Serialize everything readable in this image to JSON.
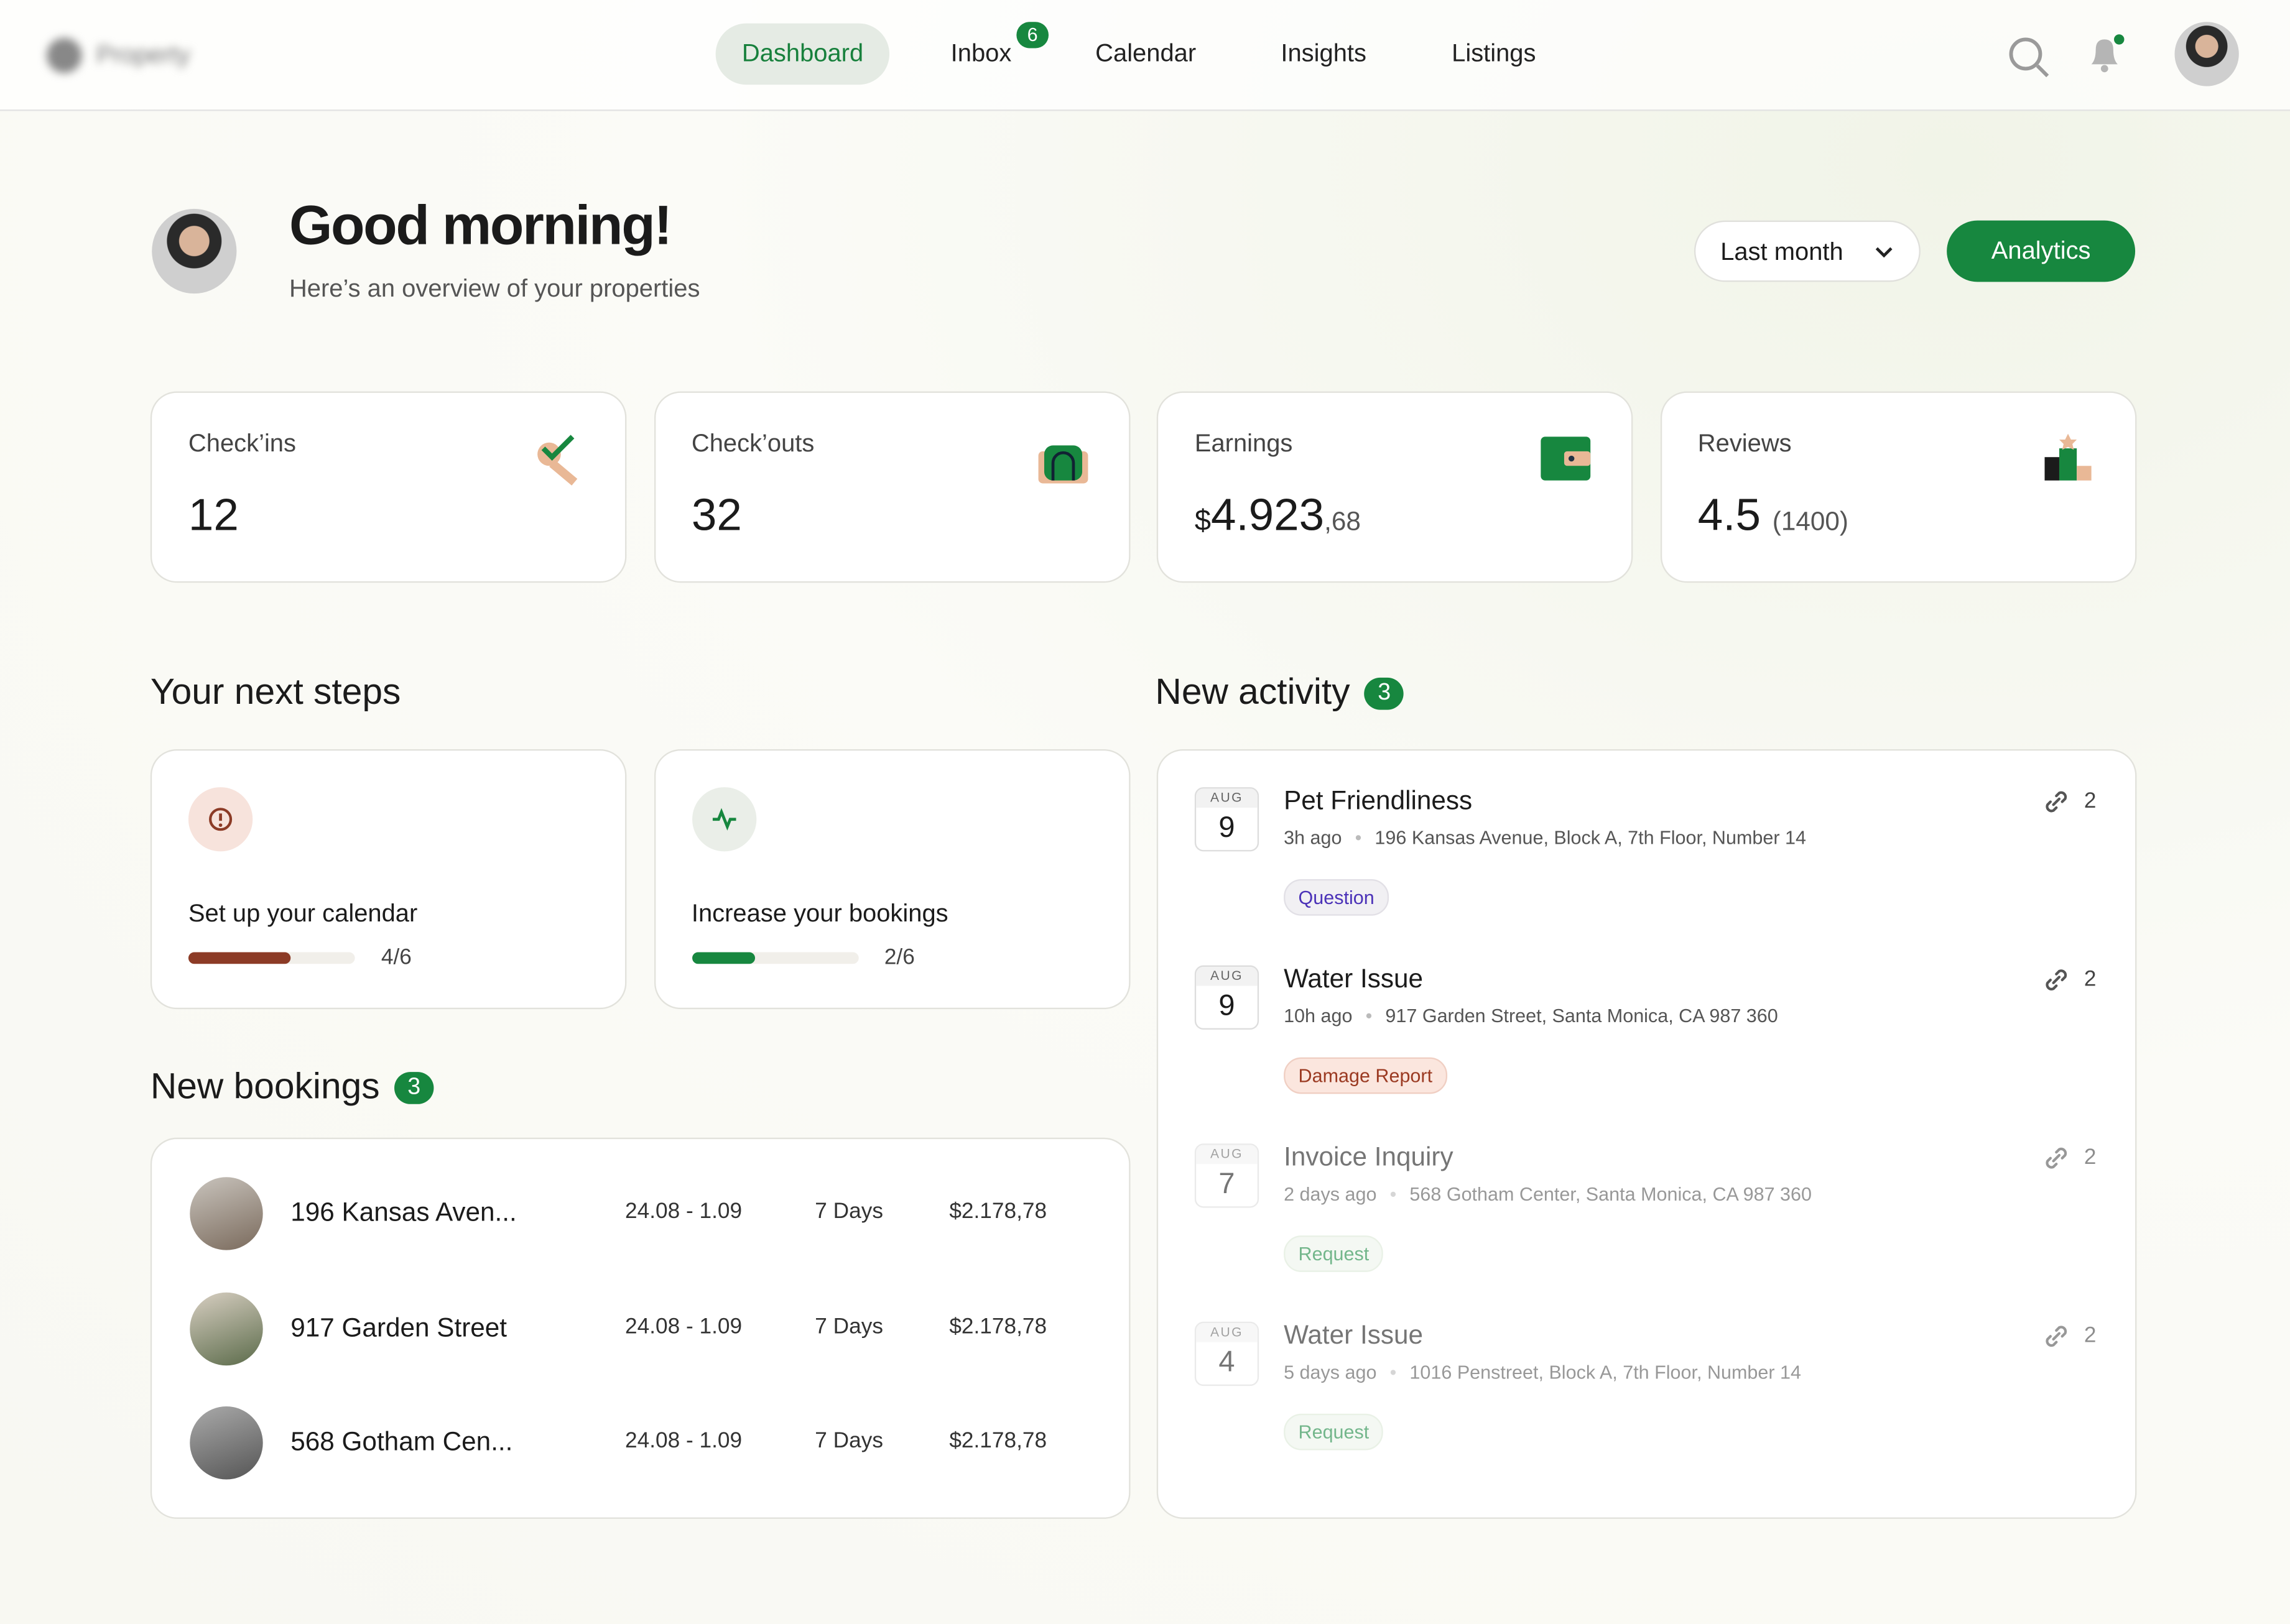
{
  "nav": {
    "logo": "Property",
    "items": [
      "Dashboard",
      "Inbox",
      "Calendar",
      "Insights",
      "Listings"
    ],
    "inbox_badge": "6"
  },
  "header": {
    "title": "Good morning!",
    "subtitle": "Here’s an overview of your properties",
    "period": "Last month",
    "action": "Analytics"
  },
  "stats": [
    {
      "label": "Check’ins",
      "value": "12"
    },
    {
      "label": "Check’outs",
      "value": "32"
    },
    {
      "label": "Earnings",
      "currency": "$",
      "value": "4.923",
      "cents": ",68"
    },
    {
      "label": "Reviews",
      "value": "4.5",
      "count": "(1400)"
    }
  ],
  "next_steps": {
    "title": "Your next steps",
    "items": [
      {
        "label": "Set up your calendar",
        "progress": "4/6"
      },
      {
        "label": "Increase your bookings",
        "progress": "2/6"
      }
    ]
  },
  "bookings": {
    "title": "New bookings",
    "badge": "3",
    "rows": [
      {
        "name": "196 Kansas Aven...",
        "dates": "24.08 - 1.09",
        "duration": "7 Days",
        "price": "$2.178,78"
      },
      {
        "name": "917 Garden Street",
        "dates": "24.08 - 1.09",
        "duration": "7 Days",
        "price": "$2.178,78"
      },
      {
        "name": "568 Gotham Cen...",
        "dates": "24.08 - 1.09",
        "duration": "7 Days",
        "price": "$2.178,78"
      }
    ]
  },
  "activity": {
    "title": "New activity",
    "badge": "3",
    "items": [
      {
        "month": "AUG",
        "day": "9",
        "title": "Pet Friendliness",
        "time": "3h ago",
        "address": "196 Kansas Avenue, Block A, 7th Floor, Number 14",
        "tag": "Question",
        "links": "2"
      },
      {
        "month": "AUG",
        "day": "9",
        "title": "Water Issue",
        "time": "10h ago",
        "address": "917 Garden Street, Santa Monica, CA 987 360",
        "tag": "Damage Report",
        "links": "2"
      },
      {
        "month": "AUG",
        "day": "7",
        "title": "Invoice Inquiry",
        "time": "2 days ago",
        "address": "568 Gotham Center, Santa Monica, CA 987 360",
        "tag": "Request",
        "links": "2"
      },
      {
        "month": "AUG",
        "day": "4",
        "title": "Water Issue",
        "time": "5 days ago",
        "address": "1016 Penstreet, Block A, 7th Floor, Number 14",
        "tag": "Request",
        "links": "2"
      }
    ]
  }
}
